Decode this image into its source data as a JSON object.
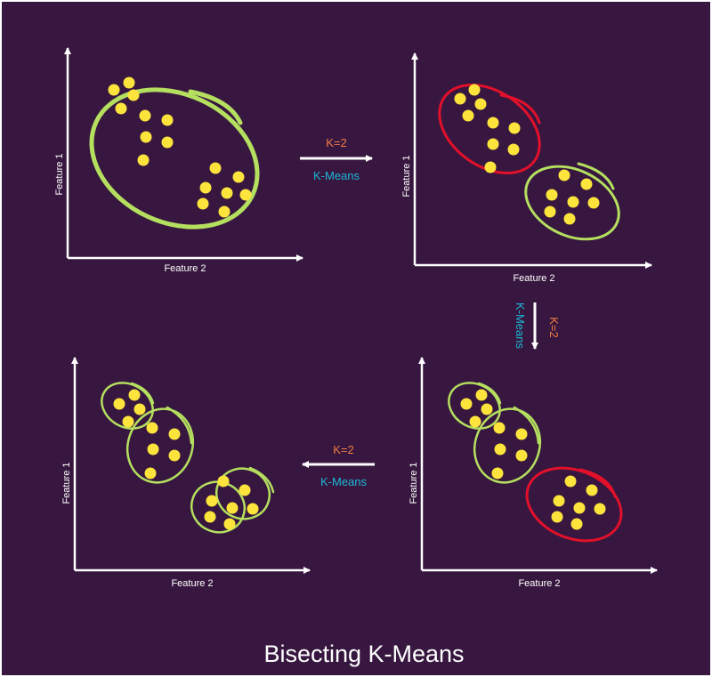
{
  "colors": {
    "background": "#37173f",
    "frame": "#ffffff",
    "point": "#fde43c",
    "cluster_green": "#b5df5f",
    "cluster_red": "#e2102a",
    "k_label": "#f27d45",
    "method_label": "#1cb7d6",
    "arrow": "#ffffff",
    "axis": "#ffffff"
  },
  "panels": [
    {
      "ylabel": "Feature 1",
      "xlabel": "Feature 2"
    },
    {
      "ylabel": "Feature 1",
      "xlabel": "Feature 2"
    },
    {
      "ylabel": "Feature 1",
      "xlabel": "Feature 2"
    },
    {
      "ylabel": "Feature 1",
      "xlabel": "Feature 2"
    }
  ],
  "steps": [
    {
      "k": "K=2",
      "method": "K-Means"
    },
    {
      "k": "K=2",
      "method": "K-Means"
    },
    {
      "k": "K=2",
      "method": "K-Means"
    }
  ],
  "caption": "Bisecting K-Means"
}
